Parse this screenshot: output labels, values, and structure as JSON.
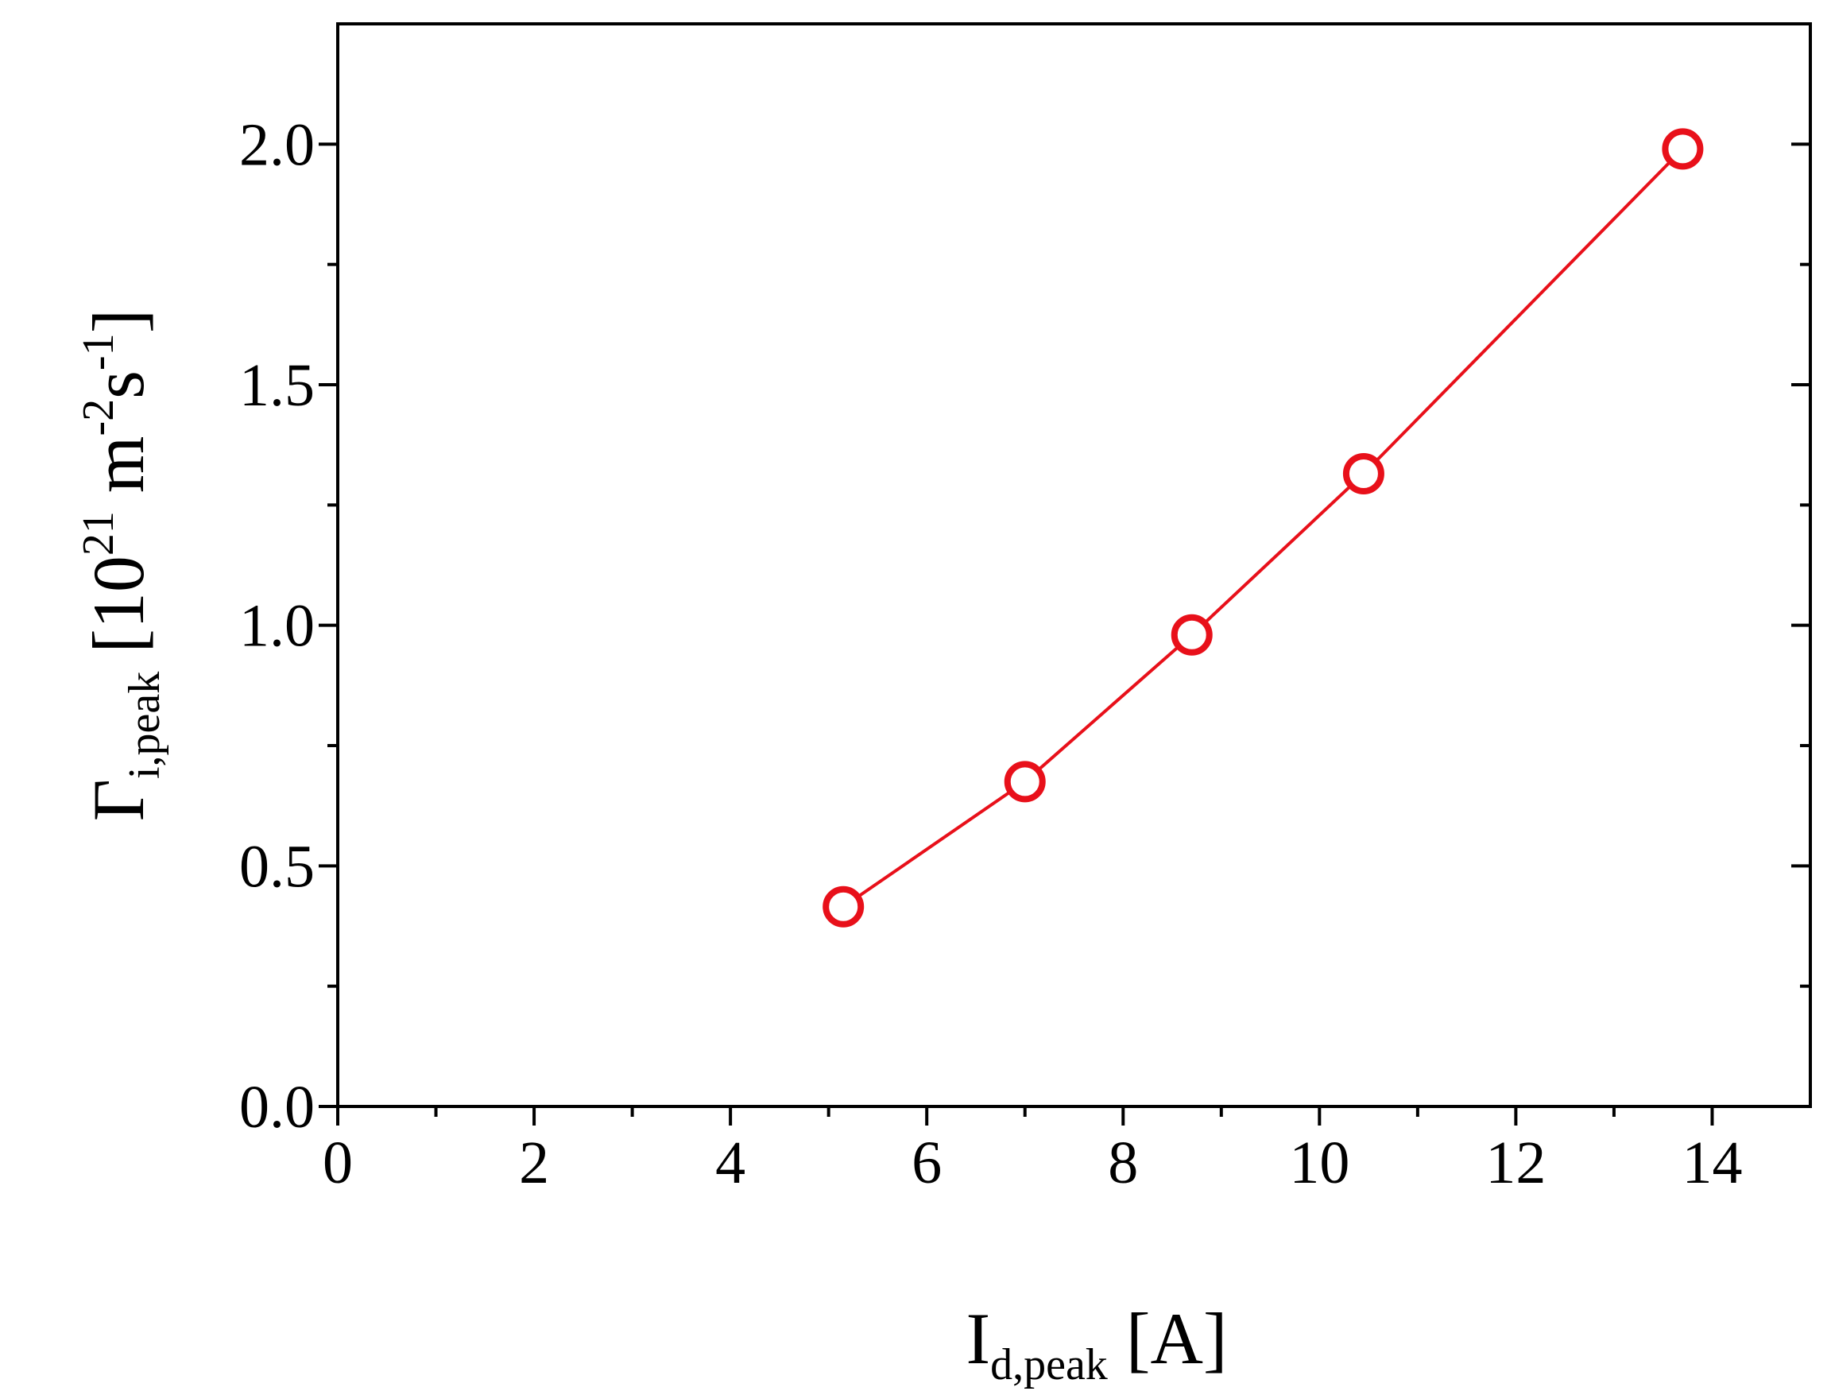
{
  "chart_data": {
    "type": "scatter",
    "title": "",
    "xlabel": {
      "main": "I",
      "sub": "d,peak",
      "tail": " [A]"
    },
    "ylabel": {
      "main": "Γ",
      "sub": "i,peak",
      "mid": " [10",
      "sup1": "21",
      "m": " m",
      "sup2": "-2",
      "s": "s",
      "sup3": "-1",
      "tail": "]"
    },
    "xlim": [
      0,
      15
    ],
    "ylim": [
      0,
      2.25
    ],
    "x_major_ticks": [
      0,
      2,
      4,
      6,
      8,
      10,
      12,
      14
    ],
    "x_tick_labels": [
      "0",
      "2",
      "4",
      "6",
      "8",
      "10",
      "12",
      "14"
    ],
    "y_major_ticks": [
      0.0,
      0.5,
      1.0,
      1.5,
      2.0
    ],
    "y_tick_labels": [
      "0.0",
      "0.5",
      "1.0",
      "1.5",
      "2.0"
    ],
    "grid": false,
    "series": [
      {
        "marker": "open-circle",
        "line": true,
        "color": "#e8101a",
        "x": [
          5.15,
          7.0,
          8.7,
          10.45,
          13.7
        ],
        "y": [
          0.415,
          0.675,
          0.98,
          1.315,
          1.99
        ]
      }
    ]
  }
}
